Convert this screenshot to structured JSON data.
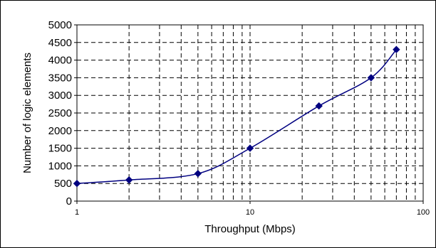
{
  "chart_data": {
    "type": "line",
    "title": "",
    "xlabel": "Throughput (Mbps)",
    "ylabel": "Number of logic elements",
    "x_scale": "log",
    "xlim": [
      1,
      100
    ],
    "ylim": [
      0,
      5000
    ],
    "x_ticks": [
      1,
      10,
      100
    ],
    "y_ticks": [
      0,
      500,
      1000,
      1500,
      2000,
      2500,
      3000,
      3500,
      4000,
      4500,
      5000
    ],
    "grid": true,
    "legend": "none",
    "series": [
      {
        "color": "#000080",
        "x": [
          1,
          2,
          5,
          10,
          25,
          50,
          70
        ],
        "y": [
          500,
          600,
          780,
          1500,
          2700,
          3500,
          4300
        ]
      }
    ]
  }
}
